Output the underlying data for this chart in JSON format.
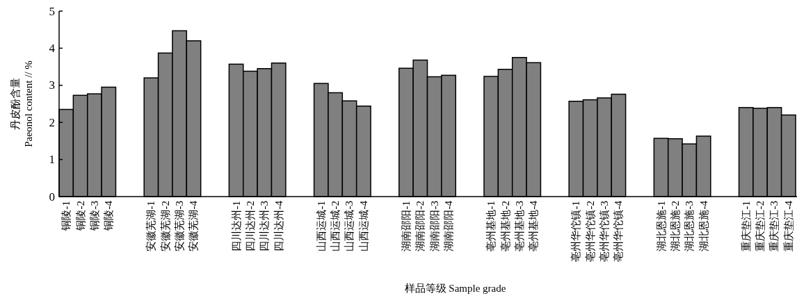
{
  "chart_data": {
    "type": "bar",
    "xlabel": "样品等级 Sample grade",
    "ylabel": "丹皮酚含量\nPaeonol content // %",
    "categories": [
      "铜陵-1",
      "铜陵-2",
      "铜陵-3",
      "铜陵-4",
      null,
      null,
      "安徽芜湖-1",
      "安徽芜湖-2",
      "安徽芜湖-3",
      "安徽芜湖-4",
      null,
      null,
      "四川达州-1",
      "四川达州-2",
      "四川达州-3",
      "四川达州-4",
      null,
      null,
      "山西运城-1",
      "山西运城-2",
      "山西运城-3",
      "山西运城-4",
      null,
      null,
      "湖南邵阳-1",
      "湖南邵阳-2",
      "湖南邵阳-3",
      "湖南邵阳-4",
      null,
      null,
      "亳州基地-1",
      "亳州基地-2",
      "亳州基地-3",
      "亳州基地-4",
      null,
      null,
      "亳州华佗镇-1",
      "亳州华佗镇-2",
      "亳州华佗镇-3",
      "亳州华佗镇-4",
      null,
      null,
      "湖北恩施-1",
      "湖北恩施-2",
      "湖北恩施-3",
      "湖北恩施-4",
      null,
      null,
      "重庆垫江-1",
      "重庆垫江-2",
      "重庆垫江-3",
      "重庆垫江-4"
    ],
    "values": [
      2.35,
      2.73,
      2.77,
      2.95,
      null,
      null,
      3.2,
      3.87,
      4.47,
      4.2,
      null,
      null,
      3.57,
      3.38,
      3.45,
      3.6,
      null,
      null,
      3.05,
      2.8,
      2.58,
      2.44,
      null,
      null,
      3.46,
      3.68,
      3.23,
      3.27,
      null,
      null,
      3.24,
      3.43,
      3.75,
      3.61,
      null,
      null,
      2.57,
      2.61,
      2.66,
      2.76,
      null,
      null,
      1.57,
      1.56,
      1.42,
      1.63,
      null,
      null,
      2.4,
      2.38,
      2.4,
      2.2
    ],
    "color": "#808080",
    "ylim": [
      0,
      5
    ],
    "yticks": [
      0,
      1,
      2,
      3,
      4,
      5
    ]
  }
}
